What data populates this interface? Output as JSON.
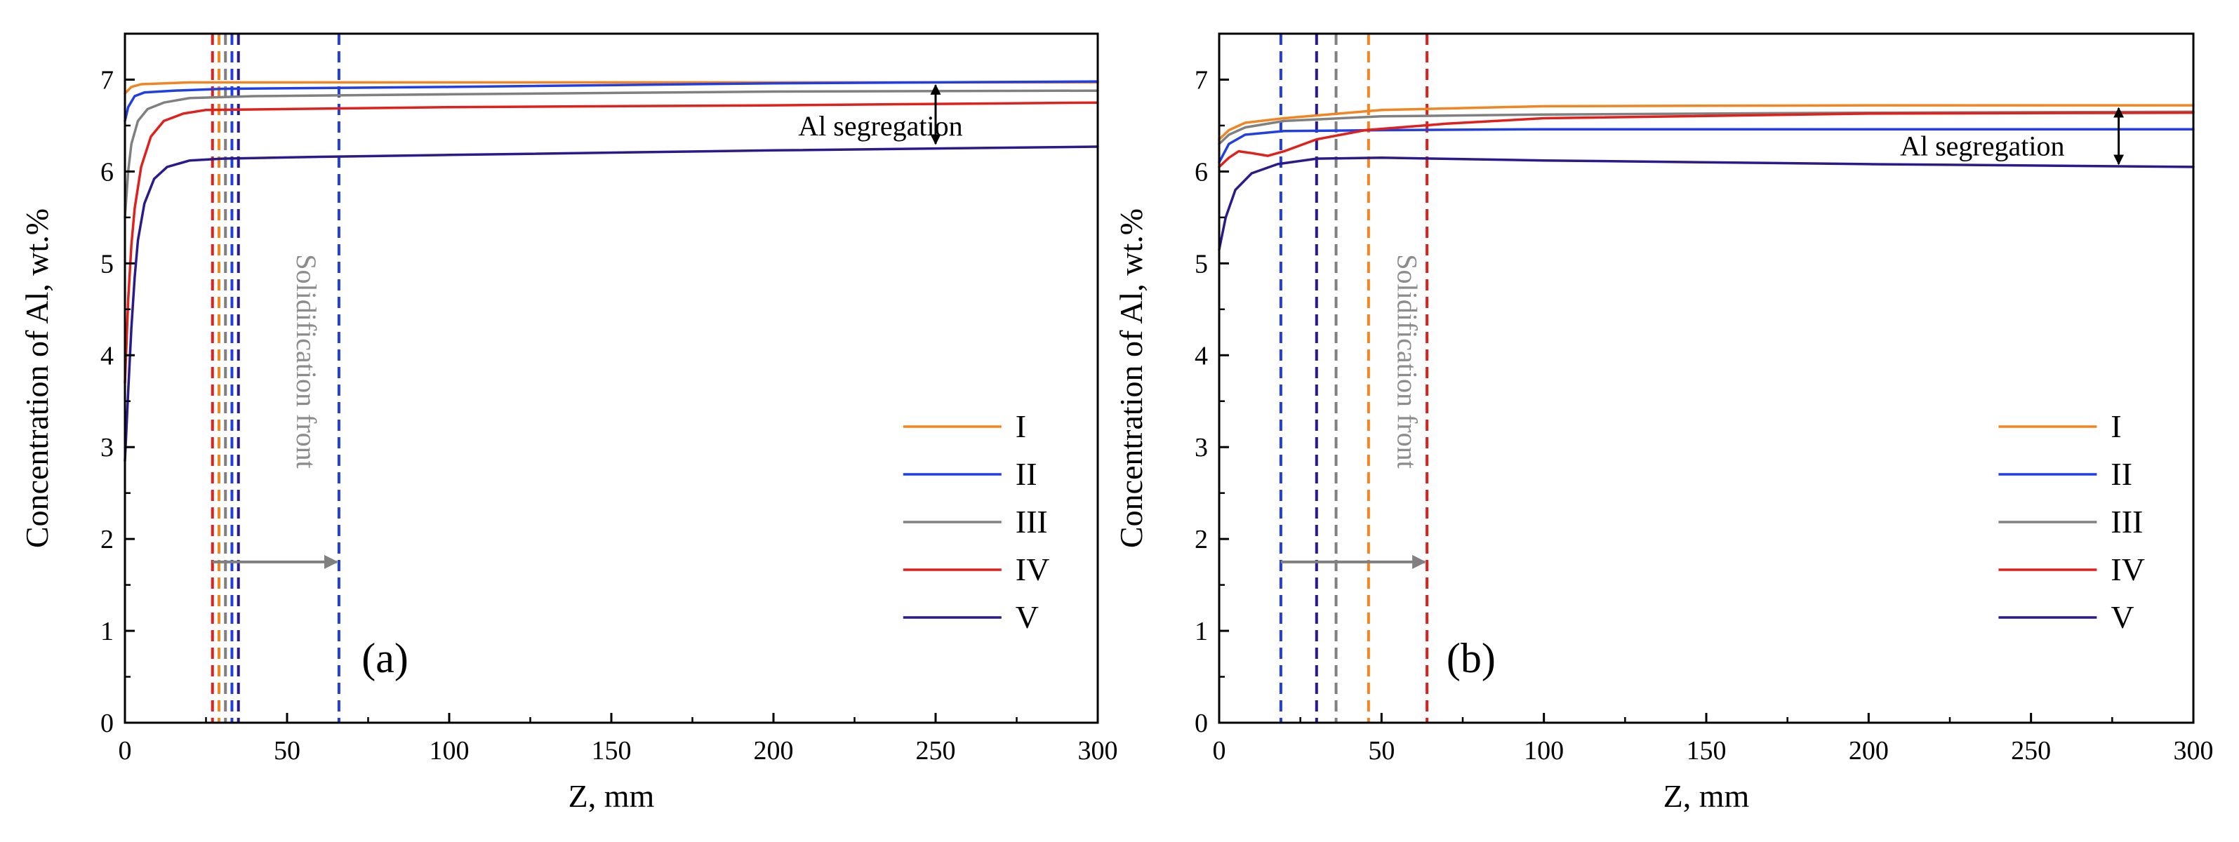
{
  "chart_data": [
    {
      "type": "line",
      "panel_label": "(a)",
      "xlabel": "Z, mm",
      "ylabel": "Concentration of Al, wt.%",
      "xlim": [
        0,
        300
      ],
      "ylim": [
        0,
        7.5
      ],
      "xticks": [
        "0",
        "50",
        "100",
        "150",
        "200",
        "250",
        "300"
      ],
      "yticks": [
        "0",
        "1",
        "2",
        "3",
        "4",
        "5",
        "6",
        "7"
      ],
      "legend_position": "lower-right",
      "series": [
        {
          "name": "I",
          "color": "#f28522",
          "points": [
            [
              0,
              6.85
            ],
            [
              2,
              6.92
            ],
            [
              5,
              6.95
            ],
            [
              20,
              6.97
            ],
            [
              100,
              6.97
            ],
            [
              200,
              6.97
            ],
            [
              300,
              6.97
            ]
          ]
        },
        {
          "name": "II",
          "color": "#1f3ee6",
          "points": [
            [
              0,
              6.55
            ],
            [
              1,
              6.7
            ],
            [
              3,
              6.82
            ],
            [
              6,
              6.86
            ],
            [
              15,
              6.88
            ],
            [
              30,
              6.9
            ],
            [
              100,
              6.92
            ],
            [
              200,
              6.96
            ],
            [
              300,
              6.98
            ]
          ]
        },
        {
          "name": "III",
          "color": "#808080",
          "points": [
            [
              0,
              5.5
            ],
            [
              1,
              6.0
            ],
            [
              2,
              6.3
            ],
            [
              4,
              6.55
            ],
            [
              7,
              6.68
            ],
            [
              12,
              6.75
            ],
            [
              20,
              6.8
            ],
            [
              40,
              6.82
            ],
            [
              100,
              6.84
            ],
            [
              200,
              6.87
            ],
            [
              300,
              6.88
            ]
          ]
        },
        {
          "name": "IV",
          "color": "#e0201b",
          "points": [
            [
              0,
              3.7
            ],
            [
              1,
              4.6
            ],
            [
              2,
              5.2
            ],
            [
              3,
              5.6
            ],
            [
              5,
              6.05
            ],
            [
              8,
              6.38
            ],
            [
              12,
              6.55
            ],
            [
              18,
              6.63
            ],
            [
              25,
              6.67
            ],
            [
              50,
              6.68
            ],
            [
              100,
              6.7
            ],
            [
              200,
              6.72
            ],
            [
              300,
              6.75
            ]
          ]
        },
        {
          "name": "V",
          "color": "#2a1a8c",
          "points": [
            [
              0,
              2.85
            ],
            [
              1,
              3.6
            ],
            [
              2,
              4.3
            ],
            [
              3,
              4.85
            ],
            [
              4,
              5.25
            ],
            [
              6,
              5.65
            ],
            [
              9,
              5.92
            ],
            [
              13,
              6.05
            ],
            [
              20,
              6.12
            ],
            [
              30,
              6.14
            ],
            [
              60,
              6.16
            ],
            [
              100,
              6.18
            ],
            [
              200,
              6.23
            ],
            [
              300,
              6.27
            ]
          ]
        }
      ],
      "front_lines": [
        {
          "series": "IV",
          "x": 27,
          "color": "#e0201b"
        },
        {
          "series": "I",
          "x": 29,
          "color": "#f28522"
        },
        {
          "series": "III",
          "x": 31,
          "color": "#808080"
        },
        {
          "series": "II",
          "x": 33,
          "color": "#1f3ee6"
        },
        {
          "series": "V",
          "x": 35,
          "color": "#2a1a8c"
        },
        {
          "series": "II",
          "x": 66,
          "color": "#1f3ee6"
        }
      ],
      "annotations": {
        "segregation_text": "Al segregation",
        "segregation_arrow": {
          "x": 250,
          "y_top": 6.97,
          "y_bottom": 6.27
        },
        "segregation_label_pos": {
          "x": 233,
          "y": 6.5
        },
        "front_text": "Solidification front",
        "front_arrow": {
          "x_start": 27,
          "x_end": 66,
          "y": 1.75
        },
        "front_text_x": 53,
        "front_text_y_top": 5.1
      }
    },
    {
      "type": "line",
      "panel_label": "(b)",
      "xlabel": "Z, mm",
      "ylabel": "Concentration of Al, wt.%",
      "xlim": [
        0,
        300
      ],
      "ylim": [
        0,
        7.5
      ],
      "xticks": [
        "0",
        "50",
        "100",
        "150",
        "200",
        "250",
        "300"
      ],
      "yticks": [
        "0",
        "1",
        "2",
        "3",
        "4",
        "5",
        "6",
        "7"
      ],
      "legend_position": "lower-right",
      "series": [
        {
          "name": "I",
          "color": "#f28522",
          "points": [
            [
              0,
              6.35
            ],
            [
              3,
              6.45
            ],
            [
              8,
              6.53
            ],
            [
              20,
              6.58
            ],
            [
              50,
              6.67
            ],
            [
              100,
              6.71
            ],
            [
              200,
              6.72
            ],
            [
              300,
              6.72
            ]
          ]
        },
        {
          "name": "II",
          "color": "#1f3ee6",
          "points": [
            [
              0,
              6.1
            ],
            [
              3,
              6.3
            ],
            [
              8,
              6.4
            ],
            [
              20,
              6.44
            ],
            [
              50,
              6.45
            ],
            [
              100,
              6.46
            ],
            [
              200,
              6.46
            ],
            [
              300,
              6.46
            ]
          ]
        },
        {
          "name": "III",
          "color": "#808080",
          "points": [
            [
              0,
              6.3
            ],
            [
              3,
              6.4
            ],
            [
              8,
              6.48
            ],
            [
              20,
              6.55
            ],
            [
              50,
              6.6
            ],
            [
              100,
              6.62
            ],
            [
              200,
              6.64
            ],
            [
              300,
              6.65
            ]
          ]
        },
        {
          "name": "IV",
          "color": "#e0201b",
          "points": [
            [
              0,
              6.05
            ],
            [
              3,
              6.15
            ],
            [
              6,
              6.22
            ],
            [
              10,
              6.2
            ],
            [
              15,
              6.17
            ],
            [
              20,
              6.22
            ],
            [
              30,
              6.35
            ],
            [
              45,
              6.45
            ],
            [
              70,
              6.52
            ],
            [
              100,
              6.58
            ],
            [
              200,
              6.63
            ],
            [
              300,
              6.64
            ]
          ]
        },
        {
          "name": "V",
          "color": "#2a1a8c",
          "points": [
            [
              0,
              5.15
            ],
            [
              2,
              5.5
            ],
            [
              5,
              5.8
            ],
            [
              10,
              5.98
            ],
            [
              18,
              6.08
            ],
            [
              30,
              6.14
            ],
            [
              50,
              6.15
            ],
            [
              100,
              6.12
            ],
            [
              200,
              6.08
            ],
            [
              300,
              6.05
            ]
          ]
        }
      ],
      "front_lines": [
        {
          "series": "II",
          "x": 19,
          "color": "#1f3ee6"
        },
        {
          "series": "V",
          "x": 30,
          "color": "#2a1a8c"
        },
        {
          "series": "III",
          "x": 36,
          "color": "#808080"
        },
        {
          "series": "I",
          "x": 46,
          "color": "#f28522"
        },
        {
          "series": "IV",
          "x": 64,
          "color": "#e0201b"
        }
      ],
      "annotations": {
        "segregation_text": "Al segregation",
        "segregation_arrow": {
          "x": 277,
          "y_top": 6.72,
          "y_bottom": 6.05
        },
        "segregation_label_pos": {
          "x": 235,
          "y": 6.28
        },
        "front_text": "Solidification front",
        "front_arrow": {
          "x_start": 19,
          "x_end": 64,
          "y": 1.75
        },
        "front_text_x": 55,
        "front_text_y_top": 5.1
      }
    }
  ]
}
